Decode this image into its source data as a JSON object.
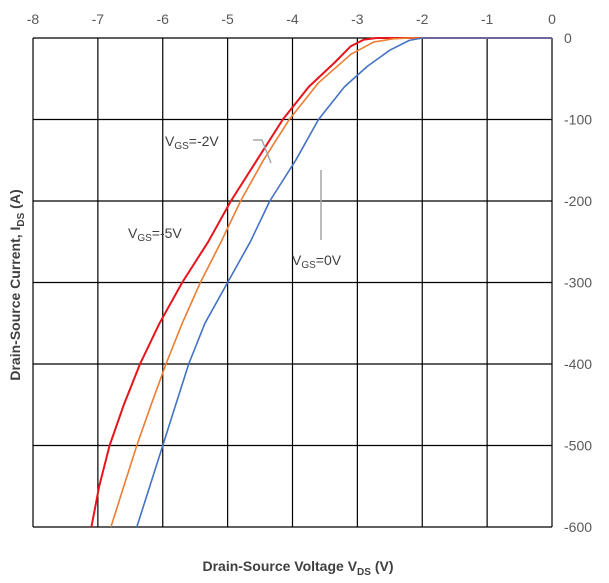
{
  "chart_data": {
    "type": "line",
    "x_axis": {
      "label_main": "Drain-Source Voltage V",
      "label_sub": "DS",
      "label_unit": " (V)",
      "range": [
        -8,
        0
      ],
      "ticks": [
        -8,
        -7,
        -6,
        -5,
        -4,
        -3,
        -2,
        -1,
        0
      ],
      "position": "top"
    },
    "y_axis": {
      "label_main": "Drain-Source Current, I",
      "label_sub": "DS",
      "label_unit": " (A)",
      "range": [
        -600,
        0
      ],
      "ticks": [
        0,
        -100,
        -200,
        -300,
        -400,
        -500,
        -600
      ],
      "position": "right"
    },
    "grid": true,
    "series": [
      {
        "name_main": "V",
        "name_sub": "GS",
        "name_value": "=-5V",
        "color": "#e8141b",
        "points": [
          [
            -7.1,
            -600
          ],
          [
            -6.98,
            -550
          ],
          [
            -6.82,
            -500
          ],
          [
            -6.6,
            -450
          ],
          [
            -6.35,
            -400
          ],
          [
            -6.05,
            -350
          ],
          [
            -5.7,
            -300
          ],
          [
            -5.3,
            -250
          ],
          [
            -4.95,
            -200
          ],
          [
            -4.55,
            -150
          ],
          [
            -4.15,
            -100
          ],
          [
            -3.75,
            -60
          ],
          [
            -3.35,
            -30
          ],
          [
            -3.1,
            -10
          ],
          [
            -2.9,
            -2
          ],
          [
            -2.7,
            0
          ],
          [
            -2.2,
            0
          ],
          [
            0,
            0
          ]
        ]
      },
      {
        "name_main": "V",
        "name_sub": "GS",
        "name_value": "=-2V",
        "color": "#ed7d31",
        "points": [
          [
            -6.8,
            -600
          ],
          [
            -6.6,
            -550
          ],
          [
            -6.4,
            -500
          ],
          [
            -6.18,
            -450
          ],
          [
            -5.95,
            -400
          ],
          [
            -5.7,
            -350
          ],
          [
            -5.42,
            -300
          ],
          [
            -5.1,
            -250
          ],
          [
            -4.8,
            -200
          ],
          [
            -4.45,
            -150
          ],
          [
            -4.05,
            -100
          ],
          [
            -3.6,
            -55
          ],
          [
            -3.1,
            -20
          ],
          [
            -2.75,
            -5
          ],
          [
            -2.45,
            -1
          ],
          [
            -2.2,
            0
          ],
          [
            0,
            0
          ]
        ]
      },
      {
        "name_main": "V",
        "name_sub": "GS",
        "name_value": "=0V",
        "color": "#4472c4",
        "points": [
          [
            -6.4,
            -600
          ],
          [
            -6.2,
            -550
          ],
          [
            -6.0,
            -500
          ],
          [
            -5.8,
            -450
          ],
          [
            -5.6,
            -400
          ],
          [
            -5.35,
            -350
          ],
          [
            -5.0,
            -300
          ],
          [
            -4.65,
            -250
          ],
          [
            -4.35,
            -200
          ],
          [
            -3.95,
            -150
          ],
          [
            -3.6,
            -100
          ],
          [
            -3.2,
            -60
          ],
          [
            -2.85,
            -35
          ],
          [
            -2.5,
            -15
          ],
          [
            -2.2,
            -3
          ],
          [
            -2.0,
            0
          ],
          [
            0,
            0
          ]
        ]
      }
    ],
    "annotations": [
      {
        "series": 0,
        "text_main": "V",
        "text_sub": "GS",
        "text_value": "=-5V"
      },
      {
        "series": 1,
        "text_main": "V",
        "text_sub": "GS",
        "text_value": "=-2V"
      },
      {
        "series": 2,
        "text_main": "V",
        "text_sub": "GS",
        "text_value": "=0V"
      }
    ]
  }
}
